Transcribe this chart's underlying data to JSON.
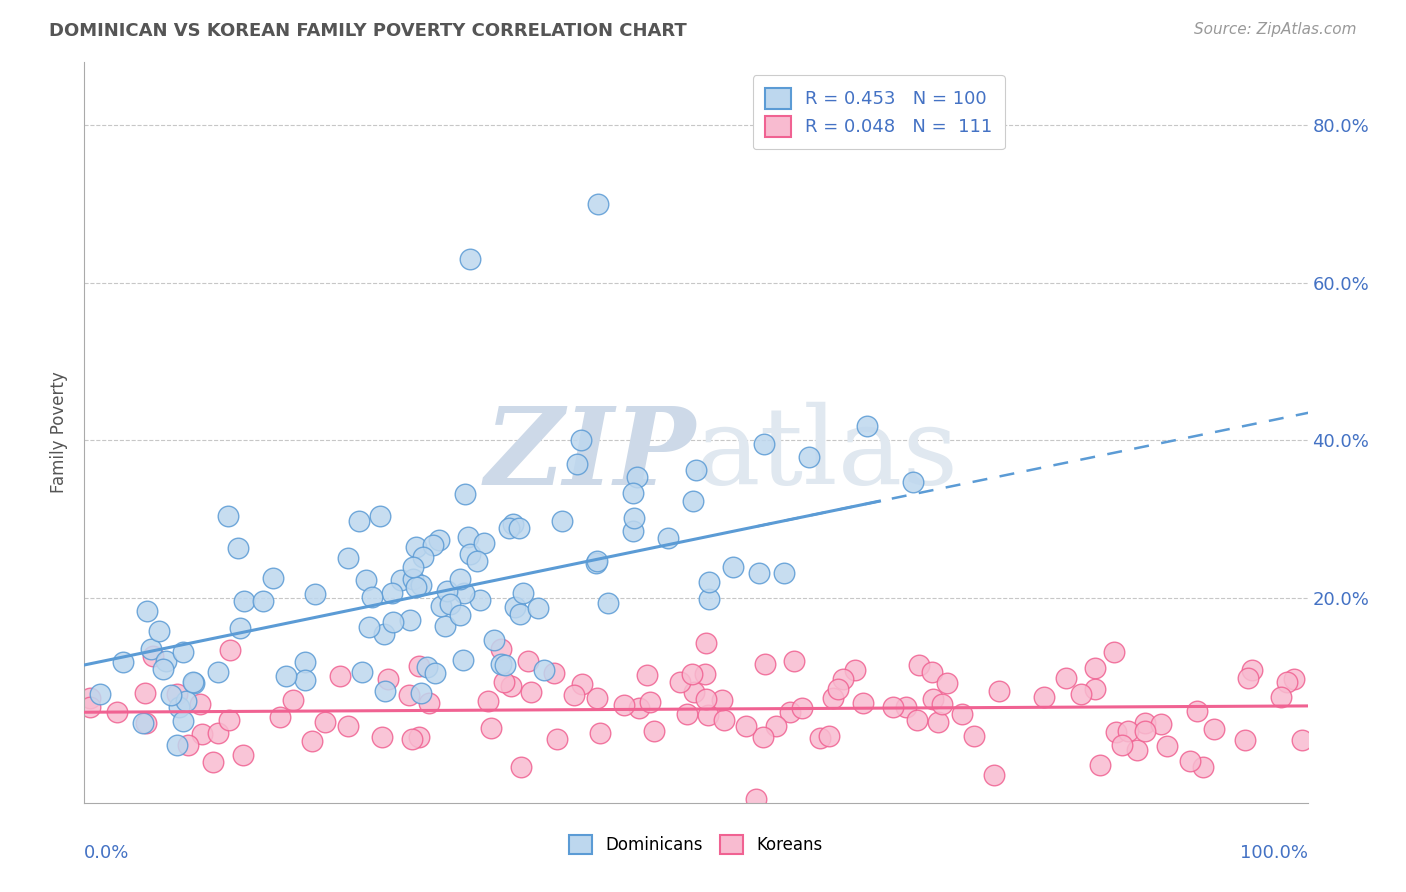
{
  "title": "DOMINICAN VS KOREAN FAMILY POVERTY CORRELATION CHART",
  "source": "Source: ZipAtlas.com",
  "ylabel": "Family Poverty",
  "xlim": [
    0.0,
    1.0
  ],
  "ylim": [
    -0.06,
    0.88
  ],
  "yticks": [
    0.2,
    0.4,
    0.6,
    0.8
  ],
  "ytick_labels": [
    "20.0%",
    "40.0%",
    "60.0%",
    "80.0%"
  ],
  "dominican_color": "#5b9bd5",
  "dominican_fill": "#bdd7ee",
  "korean_color": "#f06292",
  "korean_fill": "#f8bbd0",
  "dominican_R": 0.453,
  "dominican_N": 100,
  "korean_R": 0.048,
  "korean_N": 111,
  "watermark_zip": "ZIP",
  "watermark_atlas": "atlas",
  "watermark_color": "#cdd9e8",
  "legend_text_color": "#4472c4",
  "background_color": "#ffffff",
  "grid_color": "#b0b0b0",
  "dom_trend_solid_end": 0.65,
  "dom_trend_intercept": 0.115,
  "dom_trend_slope": 0.32,
  "kor_trend_intercept": 0.055,
  "kor_trend_slope": 0.008
}
